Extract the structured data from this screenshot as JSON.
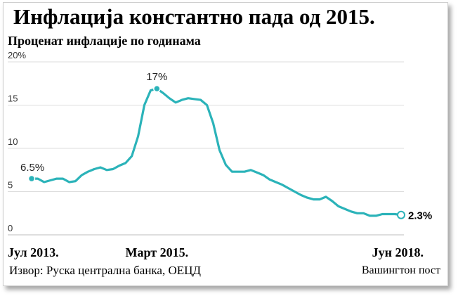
{
  "header": {
    "title": "Инфлација константно пада од 2015.",
    "subtitle": "Проценат инфлације по годинама"
  },
  "footer": {
    "source": "Извор: Руска централна банка, ОЕЦД",
    "credit": "Вашингтон пост"
  },
  "colors": {
    "line": "#2bb3b9",
    "grid": "#dddddd"
  },
  "chart_data": {
    "type": "line",
    "title": "Инфлација константно пада од 2015.",
    "subtitle": "Проценат инфлације по годинама",
    "xlabel": "",
    "ylabel": "",
    "ylim": [
      0,
      20
    ],
    "yticks": [
      0,
      5,
      10,
      15,
      20
    ],
    "ytick_labels": [
      "0",
      "5",
      "10",
      "15",
      "20%"
    ],
    "xlim": [
      "2013-07",
      "2018-06"
    ],
    "xticks": [
      {
        "x": "2013-07",
        "label": "Јул 2013."
      },
      {
        "x": "2015-03",
        "label": "Март 2015."
      },
      {
        "x": "2018-06",
        "label": "Јун 2018."
      }
    ],
    "grid": true,
    "series": [
      {
        "points": [
          [
            "2013-07",
            6.5
          ],
          [
            "2013-08",
            6.5
          ],
          [
            "2013-09",
            6.1
          ],
          [
            "2013-10",
            6.3
          ],
          [
            "2013-11",
            6.5
          ],
          [
            "2013-12",
            6.5
          ],
          [
            "2014-01",
            6.1
          ],
          [
            "2014-02",
            6.2
          ],
          [
            "2014-03",
            6.9
          ],
          [
            "2014-04",
            7.3
          ],
          [
            "2014-05",
            7.6
          ],
          [
            "2014-06",
            7.8
          ],
          [
            "2014-07",
            7.5
          ],
          [
            "2014-08",
            7.6
          ],
          [
            "2014-09",
            8.0
          ],
          [
            "2014-10",
            8.3
          ],
          [
            "2014-11",
            9.1
          ],
          [
            "2014-12",
            11.4
          ],
          [
            "2015-01",
            15.0
          ],
          [
            "2015-02",
            16.7
          ],
          [
            "2015-03",
            16.9
          ],
          [
            "2015-04",
            16.4
          ],
          [
            "2015-05",
            15.8
          ],
          [
            "2015-06",
            15.3
          ],
          [
            "2015-07",
            15.6
          ],
          [
            "2015-08",
            15.8
          ],
          [
            "2015-09",
            15.7
          ],
          [
            "2015-10",
            15.6
          ],
          [
            "2015-11",
            15.0
          ],
          [
            "2015-12",
            12.9
          ],
          [
            "2016-01",
            9.8
          ],
          [
            "2016-02",
            8.1
          ],
          [
            "2016-03",
            7.3
          ],
          [
            "2016-04",
            7.3
          ],
          [
            "2016-05",
            7.3
          ],
          [
            "2016-06",
            7.5
          ],
          [
            "2016-07",
            7.2
          ],
          [
            "2016-08",
            6.9
          ],
          [
            "2016-09",
            6.4
          ],
          [
            "2016-10",
            6.1
          ],
          [
            "2016-11",
            5.8
          ],
          [
            "2016-12",
            5.4
          ],
          [
            "2017-01",
            5.0
          ],
          [
            "2017-02",
            4.6
          ],
          [
            "2017-03",
            4.3
          ],
          [
            "2017-04",
            4.1
          ],
          [
            "2017-05",
            4.1
          ],
          [
            "2017-06",
            4.4
          ],
          [
            "2017-07",
            3.9
          ],
          [
            "2017-08",
            3.3
          ],
          [
            "2017-09",
            3.0
          ],
          [
            "2017-10",
            2.7
          ],
          [
            "2017-11",
            2.5
          ],
          [
            "2017-12",
            2.5
          ],
          [
            "2018-01",
            2.2
          ],
          [
            "2018-02",
            2.2
          ],
          [
            "2018-03",
            2.4
          ],
          [
            "2018-04",
            2.4
          ],
          [
            "2018-05",
            2.4
          ],
          [
            "2018-06",
            2.3
          ]
        ]
      }
    ],
    "annotations": [
      {
        "x": "2013-07",
        "y": 6.5,
        "label": "6.5%",
        "marker": "filled"
      },
      {
        "x": "2015-03",
        "y": 16.9,
        "label": "17%",
        "marker": "filled"
      },
      {
        "x": "2018-06",
        "y": 2.3,
        "label": "2.3%",
        "marker": "open",
        "bold": true
      }
    ]
  }
}
